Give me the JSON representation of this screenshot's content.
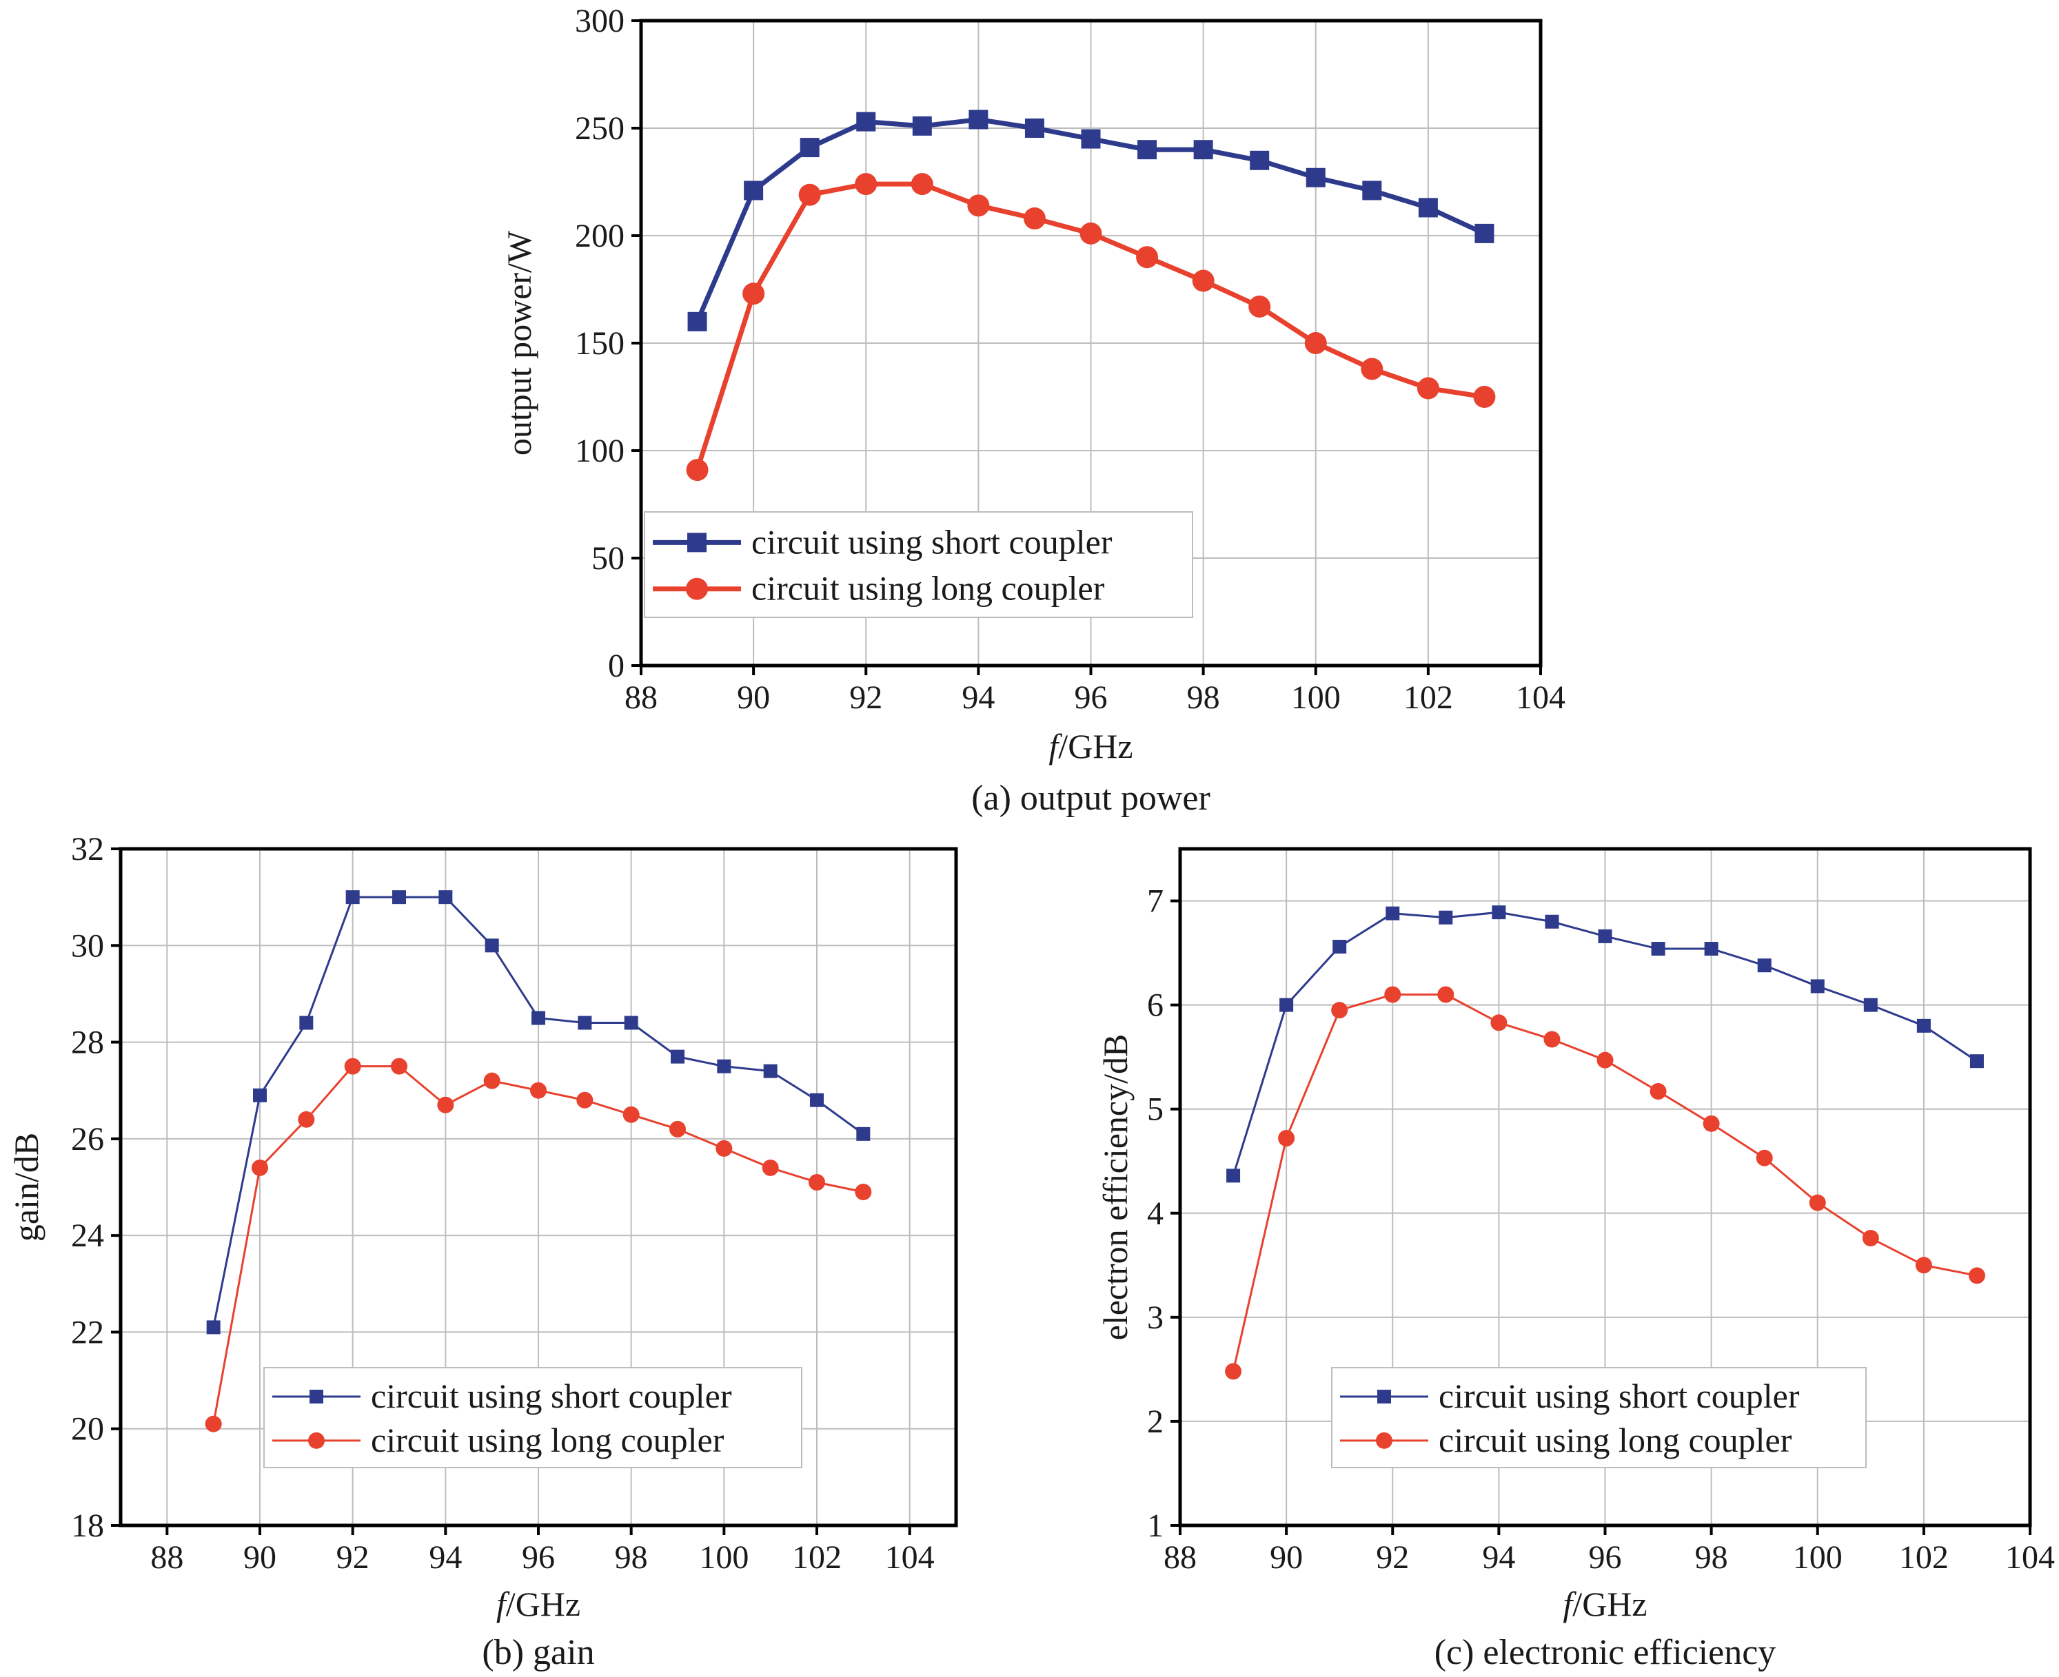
{
  "colors": {
    "series_short": "#2e3b8c",
    "series_long": "#e8412e"
  },
  "chart_data": [
    {
      "id": "a",
      "type": "line",
      "caption": "(a) output power",
      "xlabel_italic": "f",
      "xlabel_unit": "/GHz",
      "ylabel": "output power/W",
      "xlim": [
        88,
        104
      ],
      "ylim": [
        0,
        300
      ],
      "xticks": [
        88,
        90,
        92,
        94,
        96,
        98,
        100,
        102,
        104
      ],
      "yticks": [
        0,
        50,
        100,
        150,
        200,
        250,
        300
      ],
      "grid": true,
      "legend_position": "bottom-left",
      "x": [
        89,
        90,
        91,
        92,
        93,
        94,
        95,
        96,
        97,
        98,
        99,
        100,
        101,
        102,
        103
      ],
      "series": [
        {
          "name": "circuit using short coupler",
          "marker": "square",
          "color": "#2e3b8c",
          "values": [
            160,
            221,
            241,
            253,
            251,
            254,
            250,
            245,
            240,
            240,
            235,
            227,
            221,
            213,
            201
          ]
        },
        {
          "name": "circuit using long coupler",
          "marker": "circle",
          "color": "#e8412e",
          "values": [
            91,
            173,
            219,
            224,
            224,
            214,
            208,
            201,
            190,
            179,
            167,
            150,
            138,
            129,
            125
          ]
        }
      ]
    },
    {
      "id": "b",
      "type": "line",
      "caption": "(b) gain",
      "xlabel_italic": "f",
      "xlabel_unit": "/GHz",
      "ylabel": "gain/dB",
      "xlim": [
        87,
        105
      ],
      "ylim": [
        18,
        32
      ],
      "xticks": [
        88,
        90,
        92,
        94,
        96,
        98,
        100,
        102,
        104
      ],
      "yticks": [
        18,
        20,
        22,
        24,
        26,
        28,
        30,
        32
      ],
      "grid": true,
      "legend_position": "bottom-center",
      "x": [
        89,
        90,
        91,
        92,
        93,
        94,
        95,
        96,
        97,
        98,
        99,
        100,
        101,
        102,
        103
      ],
      "series": [
        {
          "name": "circuit using short coupler",
          "marker": "square",
          "color": "#2e3b8c",
          "values": [
            22.1,
            26.9,
            28.4,
            31.0,
            31.0,
            31.0,
            30.0,
            28.5,
            28.4,
            28.4,
            27.7,
            27.5,
            27.4,
            26.8,
            26.1
          ]
        },
        {
          "name": "circuit using long coupler",
          "marker": "circle",
          "color": "#e8412e",
          "values": [
            20.1,
            25.4,
            26.4,
            27.5,
            27.5,
            26.7,
            27.2,
            27.0,
            26.8,
            26.5,
            26.2,
            25.8,
            25.4,
            25.1,
            24.9
          ]
        }
      ]
    },
    {
      "id": "c",
      "type": "line",
      "caption": "(c) electronic efficiency",
      "xlabel_italic": "f",
      "xlabel_unit": "/GHz",
      "ylabel": "electron efficiency/dB",
      "xlim": [
        88,
        104
      ],
      "ylim": [
        1,
        7.5
      ],
      "xticks": [
        88,
        90,
        92,
        94,
        96,
        98,
        100,
        102,
        104
      ],
      "yticks": [
        1,
        2,
        3,
        4,
        5,
        6,
        7
      ],
      "grid": true,
      "legend_position": "bottom-center",
      "x": [
        89,
        90,
        91,
        92,
        93,
        94,
        95,
        96,
        97,
        98,
        99,
        100,
        101,
        102,
        103
      ],
      "series": [
        {
          "name": "circuit using short coupler",
          "marker": "square",
          "color": "#2e3b8c",
          "values": [
            4.36,
            6.0,
            6.56,
            6.88,
            6.84,
            6.89,
            6.8,
            6.66,
            6.54,
            6.54,
            6.38,
            6.18,
            6.0,
            5.8,
            5.46
          ]
        },
        {
          "name": "circuit using long coupler",
          "marker": "circle",
          "color": "#e8412e",
          "values": [
            2.48,
            4.72,
            5.95,
            6.1,
            6.1,
            5.83,
            5.67,
            5.47,
            5.17,
            4.86,
            4.53,
            4.1,
            3.76,
            3.5,
            3.4
          ]
        }
      ]
    }
  ]
}
